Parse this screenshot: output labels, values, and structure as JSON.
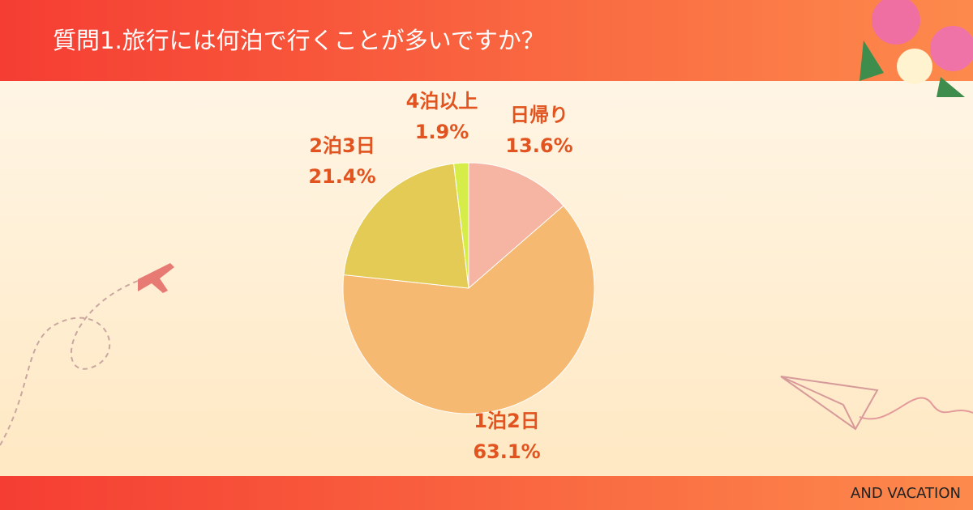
{
  "chart_data": {
    "type": "pie",
    "title": "質問1.旅行には何泊で行くことが多いですか？",
    "categories": [
      "日帰り",
      "1泊2日",
      "2泊3日",
      "4泊以上"
    ],
    "values": [
      13.6,
      63.1,
      21.4,
      1.9
    ],
    "value_labels": [
      "13.6%",
      "63.1%",
      "21.4%",
      "1.9%"
    ],
    "colors": [
      "#f6b4a2",
      "#f5b972",
      "#e4cb56",
      "#d6ec48"
    ]
  },
  "footer": "AND VACATION"
}
